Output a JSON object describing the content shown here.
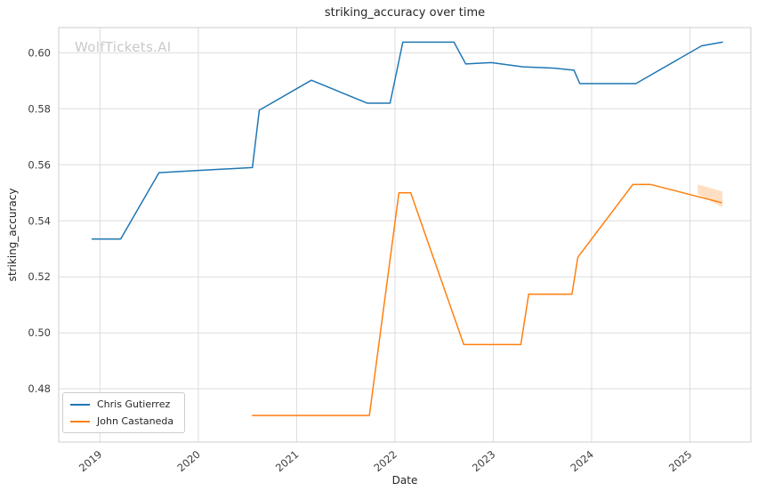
{
  "watermark": "WolfTickets.AI",
  "chart_data": {
    "type": "line",
    "title": "striking_accuracy over time",
    "xlabel": "Date",
    "ylabel": "striking_accuracy",
    "xlim": [
      2018.58,
      2025.62
    ],
    "ylim": [
      0.461,
      0.609
    ],
    "grid": true,
    "grid_color": "#dddddd",
    "axes_border_color": "#cccccc",
    "background_color": "#ffffff",
    "legend_position": "lower left",
    "x_ticks": [
      2019,
      2020,
      2021,
      2022,
      2023,
      2024,
      2025
    ],
    "x_tick_labels": [
      "2019",
      "2020",
      "2021",
      "2022",
      "2023",
      "2024",
      "2025"
    ],
    "y_ticks": [
      0.48,
      0.5,
      0.52,
      0.54,
      0.56,
      0.58,
      0.6
    ],
    "y_tick_labels": [
      "0.48",
      "0.50",
      "0.52",
      "0.54",
      "0.56",
      "0.58",
      "0.60"
    ],
    "series": [
      {
        "name": "Chris Gutierrez",
        "color": "#1f77b4",
        "x": [
          2018.92,
          2019.21,
          2019.6,
          2020.0,
          2020.55,
          2020.62,
          2021.15,
          2021.72,
          2021.95,
          2022.08,
          2022.6,
          2022.72,
          2022.98,
          2023.3,
          2023.62,
          2023.82,
          2023.88,
          2024.45,
          2025.12,
          2025.33
        ],
        "y": [
          0.5335,
          0.5335,
          0.5572,
          0.558,
          0.559,
          0.5795,
          0.5902,
          0.582,
          0.582,
          0.6038,
          0.6038,
          0.596,
          0.5965,
          0.595,
          0.5945,
          0.5938,
          0.589,
          0.589,
          0.6025,
          0.6038
        ]
      },
      {
        "name": "John Castaneda",
        "color": "#ff7f0e",
        "x": [
          2020.55,
          2021.74,
          2022.04,
          2022.16,
          2022.7,
          2023.28,
          2023.36,
          2023.8,
          2023.86,
          2024.42,
          2024.6,
          2025.32
        ],
        "y": [
          0.4705,
          0.4705,
          0.55,
          0.55,
          0.4958,
          0.4958,
          0.5138,
          0.5138,
          0.527,
          0.553,
          0.553,
          0.5465
        ]
      }
    ],
    "band": {
      "series": "John Castaneda",
      "color": "#ff7f0e",
      "opacity": 0.25,
      "x": [
        2025.08,
        2025.33
      ],
      "y_high": [
        0.553,
        0.5505
      ],
      "y_low": [
        0.5495,
        0.5448
      ]
    }
  }
}
